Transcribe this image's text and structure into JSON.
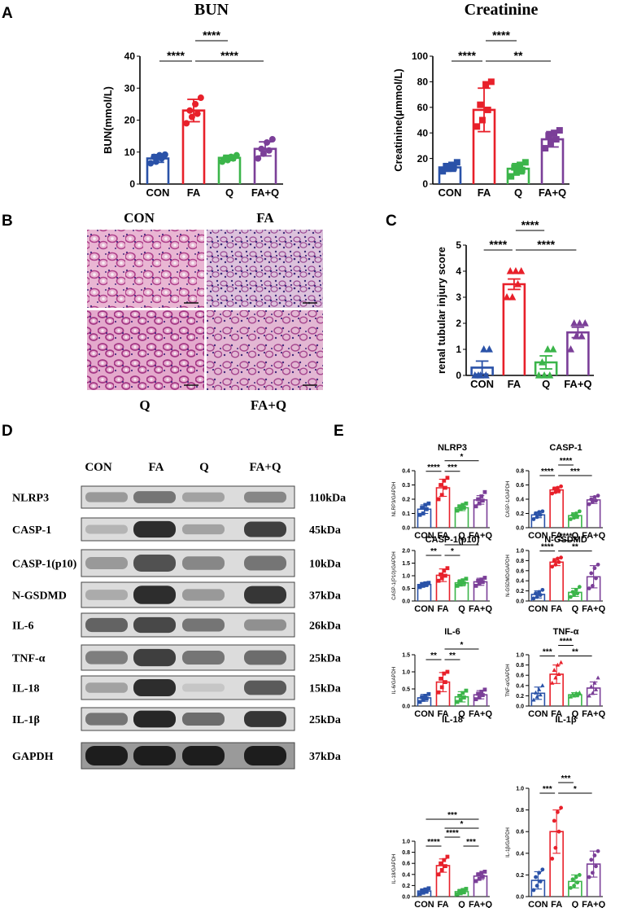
{
  "panels": {
    "A": "A",
    "B": "B",
    "C": "C",
    "D": "D",
    "E": "E"
  },
  "colors": {
    "CON": "#2a52a8",
    "FA": "#e8202a",
    "Q": "#3bb54a",
    "FA+Q": "#7b3f98"
  },
  "histology": {
    "labels": [
      "CON",
      "FA",
      "Q",
      "FA+Q"
    ]
  },
  "western_blot": {
    "lanes": [
      "CON",
      "FA",
      "Q",
      "FA+Q"
    ],
    "proteins": [
      {
        "name": "NLRP3",
        "size": "110kDa",
        "intensity": [
          0.35,
          0.55,
          0.3,
          0.45
        ]
      },
      {
        "name": "CASP-1",
        "size": "45kDa",
        "intensity": [
          0.2,
          0.95,
          0.3,
          0.85
        ]
      },
      {
        "name": "CASP-1(p10)",
        "size": "10kDa",
        "intensity": [
          0.35,
          0.75,
          0.45,
          0.55
        ]
      },
      {
        "name": "N-GSDMD",
        "size": "37kDa",
        "intensity": [
          0.25,
          0.95,
          0.35,
          0.9
        ]
      },
      {
        "name": "IL-6",
        "size": "26kDa",
        "intensity": [
          0.65,
          0.8,
          0.55,
          0.4
        ]
      },
      {
        "name": "TNF-α",
        "size": "25kDa",
        "intensity": [
          0.5,
          0.85,
          0.55,
          0.6
        ]
      },
      {
        "name": "IL-18",
        "size": "15kDa",
        "intensity": [
          0.3,
          0.95,
          0.1,
          0.7
        ]
      },
      {
        "name": "IL-1β",
        "size": "25kDa",
        "intensity": [
          0.55,
          0.98,
          0.6,
          0.9
        ]
      },
      {
        "name": "GAPDH",
        "size": "37kDa",
        "intensity": [
          1.0,
          1.0,
          1.0,
          1.0
        ]
      }
    ]
  },
  "chart_data": [
    {
      "id": "bun",
      "type": "bar",
      "title": "BUN",
      "ylabel": "BUN(mmol/L)",
      "categories": [
        "CON",
        "FA",
        "Q",
        "FA+Q"
      ],
      "values": [
        8,
        23,
        8.2,
        11
      ],
      "errors": [
        1.2,
        3.5,
        0.8,
        2.2
      ],
      "points": [
        [
          6.5,
          7,
          8,
          8.5,
          9,
          9.2
        ],
        [
          19,
          21,
          22,
          23,
          25,
          27
        ],
        [
          7,
          7.5,
          8,
          8.2,
          8.5,
          9
        ],
        [
          8,
          9.5,
          10.5,
          11,
          13,
          14
        ]
      ],
      "ylim": [
        0,
        40
      ],
      "yticks": [
        0,
        10,
        20,
        30,
        40
      ],
      "sig": [
        {
          "from": 0,
          "to": 1,
          "text": "****",
          "level": 0
        },
        {
          "from": 1,
          "to": 3,
          "text": "****",
          "level": 0
        },
        {
          "from": 1,
          "to": 2,
          "text": "****",
          "level": 1
        }
      ]
    },
    {
      "id": "creat",
      "type": "bar",
      "title": "Creatinine",
      "ylabel": "Creatinine(μmmol/L)",
      "categories": [
        "CON",
        "FA",
        "Q",
        "FA+Q"
      ],
      "values": [
        13,
        58,
        12,
        35
      ],
      "errors": [
        3,
        17,
        4,
        6
      ],
      "points": [
        [
          10,
          12,
          13,
          14,
          15,
          17
        ],
        [
          45,
          50,
          58,
          62,
          78,
          80
        ],
        [
          6,
          9,
          11,
          13,
          15,
          17
        ],
        [
          28,
          32,
          35,
          38,
          40,
          42
        ]
      ],
      "ylim": [
        0,
        100
      ],
      "yticks": [
        0,
        20,
        40,
        60,
        80,
        100
      ],
      "sig": [
        {
          "from": 0,
          "to": 1,
          "text": "****",
          "level": 0
        },
        {
          "from": 1,
          "to": 3,
          "text": "**",
          "level": 0
        },
        {
          "from": 1,
          "to": 2,
          "text": "****",
          "level": 1
        }
      ]
    },
    {
      "id": "injury",
      "type": "bar",
      "ylabel": "renal tubular injury score",
      "categories": [
        "CON",
        "FA",
        "Q",
        "FA+Q"
      ],
      "values": [
        0.3,
        3.5,
        0.5,
        1.65
      ],
      "errors": [
        0.25,
        0.2,
        0.25,
        0.2
      ],
      "points": [
        [
          0,
          0,
          0,
          0,
          1,
          1
        ],
        [
          3,
          3,
          3.5,
          4,
          4,
          4
        ],
        [
          0,
          0,
          0,
          0.5,
          1,
          1
        ],
        [
          1,
          1.5,
          1.5,
          2,
          2,
          2
        ]
      ],
      "ylim": [
        0,
        5
      ],
      "yticks": [
        0,
        1,
        2,
        3,
        4,
        5
      ],
      "sig": [
        {
          "from": 0,
          "to": 1,
          "text": "****",
          "level": 0
        },
        {
          "from": 1,
          "to": 3,
          "text": "****",
          "level": 0
        },
        {
          "from": 1,
          "to": 2,
          "text": "****",
          "level": 1
        }
      ]
    },
    {
      "id": "nlrp3",
      "type": "bar",
      "title": "NLRP3",
      "ylabel": "NLRP3/GAPDH",
      "categories": [
        "CON",
        "FA",
        "Q",
        "FA+Q"
      ],
      "values": [
        0.13,
        0.28,
        0.14,
        0.195
      ],
      "errors": [
        0.03,
        0.06,
        0.02,
        0.03
      ],
      "points": [
        [
          0.09,
          0.1,
          0.13,
          0.14,
          0.16,
          0.17
        ],
        [
          0.2,
          0.23,
          0.28,
          0.3,
          0.33,
          0.35
        ],
        [
          0.12,
          0.13,
          0.14,
          0.15,
          0.16,
          0.17
        ],
        [
          0.15,
          0.17,
          0.19,
          0.2,
          0.22,
          0.25
        ]
      ],
      "ylim": [
        0,
        0.4
      ],
      "yticks": [
        0,
        0.1,
        0.2,
        0.3,
        0.4
      ],
      "sig": [
        {
          "from": 0,
          "to": 1,
          "text": "****",
          "level": 0
        },
        {
          "from": 1,
          "to": 2,
          "text": "***",
          "level": 0
        },
        {
          "from": 1,
          "to": 3,
          "text": "*",
          "level": 1
        }
      ]
    },
    {
      "id": "casp1",
      "type": "bar",
      "title": "CASP-1",
      "ylabel": "CASP-1/GAPDH",
      "categories": [
        "CON",
        "FA",
        "Q",
        "FA+Q"
      ],
      "values": [
        0.18,
        0.53,
        0.17,
        0.39
      ],
      "errors": [
        0.04,
        0.04,
        0.04,
        0.05
      ],
      "points": [
        [
          0.12,
          0.15,
          0.18,
          0.2,
          0.22,
          0.23
        ],
        [
          0.48,
          0.5,
          0.52,
          0.55,
          0.56,
          0.58
        ],
        [
          0.12,
          0.14,
          0.16,
          0.18,
          0.2,
          0.23
        ],
        [
          0.33,
          0.36,
          0.38,
          0.4,
          0.43,
          0.45
        ]
      ],
      "ylim": [
        0,
        0.8
      ],
      "yticks": [
        0,
        0.2,
        0.4,
        0.6,
        0.8
      ],
      "sig": [
        {
          "from": 0,
          "to": 1,
          "text": "****",
          "level": 0
        },
        {
          "from": 1,
          "to": 3,
          "text": "***",
          "level": 0
        },
        {
          "from": 1,
          "to": 2,
          "text": "****",
          "level": 1
        }
      ]
    },
    {
      "id": "casp1p10",
      "type": "bar",
      "title": "CASP-1(p10)",
      "ylabel": "CASP-1(P10)/GAPDH",
      "categories": [
        "CON",
        "FA",
        "Q",
        "FA+Q"
      ],
      "values": [
        0.65,
        1.02,
        0.72,
        0.76
      ],
      "errors": [
        0.08,
        0.25,
        0.12,
        0.14
      ],
      "points": [
        [
          0.55,
          0.6,
          0.65,
          0.67,
          0.7,
          0.72
        ],
        [
          0.8,
          0.9,
          1.0,
          1.05,
          1.2,
          1.3
        ],
        [
          0.6,
          0.65,
          0.7,
          0.75,
          0.82,
          0.88
        ],
        [
          0.6,
          0.68,
          0.75,
          0.8,
          0.85,
          0.92
        ]
      ],
      "ylim": [
        0,
        2.0
      ],
      "yticks": [
        0,
        0.5,
        1.0,
        1.5,
        2.0
      ],
      "sig": [
        {
          "from": 0,
          "to": 1,
          "text": "**",
          "level": 0
        },
        {
          "from": 1,
          "to": 2,
          "text": "*",
          "level": 0
        },
        {
          "from": 1,
          "to": 3,
          "text": "*",
          "level": 1
        }
      ]
    },
    {
      "id": "ngsdmd",
      "type": "bar",
      "title": "N-GSDMD",
      "ylabel": "N-GSDMD/GAPDH",
      "categories": [
        "CON",
        "FA",
        "Q",
        "FA+Q"
      ],
      "values": [
        0.13,
        0.77,
        0.17,
        0.48
      ],
      "errors": [
        0.07,
        0.07,
        0.08,
        0.22
      ],
      "points": [
        [
          0.05,
          0.08,
          0.12,
          0.15,
          0.18,
          0.22
        ],
        [
          0.68,
          0.72,
          0.77,
          0.8,
          0.84,
          0.86
        ],
        [
          0.08,
          0.12,
          0.15,
          0.18,
          0.22,
          0.28
        ],
        [
          0.25,
          0.3,
          0.45,
          0.55,
          0.65,
          0.72
        ]
      ],
      "ylim": [
        0,
        1.0
      ],
      "yticks": [
        0,
        0.2,
        0.4,
        0.6,
        0.8,
        1.0
      ],
      "sig": [
        {
          "from": 0,
          "to": 1,
          "text": "****",
          "level": 0
        },
        {
          "from": 1,
          "to": 3,
          "text": "**",
          "level": 0
        },
        {
          "from": 1,
          "to": 2,
          "text": "****",
          "level": 1
        }
      ]
    },
    {
      "id": "il6",
      "type": "bar",
      "title": "IL-6",
      "ylabel": "IL-6/GAPDH",
      "categories": [
        "CON",
        "FA",
        "Q",
        "FA+Q"
      ],
      "values": [
        0.24,
        0.7,
        0.27,
        0.33
      ],
      "errors": [
        0.1,
        0.28,
        0.15,
        0.12
      ],
      "points": [
        [
          0.12,
          0.18,
          0.22,
          0.26,
          0.3,
          0.35
        ],
        [
          0.4,
          0.55,
          0.7,
          0.8,
          0.95,
          1.0
        ],
        [
          0.12,
          0.18,
          0.25,
          0.3,
          0.38,
          0.45
        ],
        [
          0.2,
          0.25,
          0.32,
          0.36,
          0.42,
          0.48
        ]
      ],
      "ylim": [
        0,
        1.5
      ],
      "yticks": [
        0,
        0.5,
        1.0,
        1.5
      ],
      "sig": [
        {
          "from": 0,
          "to": 1,
          "text": "**",
          "level": 0
        },
        {
          "from": 1,
          "to": 2,
          "text": "**",
          "level": 0
        },
        {
          "from": 1,
          "to": 3,
          "text": "*",
          "level": 1
        }
      ]
    },
    {
      "id": "tnfa",
      "type": "bar",
      "title": "TNF-α",
      "ylabel": "TNF-α/GAPDH",
      "categories": [
        "CON",
        "FA",
        "Q",
        "FA+Q"
      ],
      "values": [
        0.25,
        0.62,
        0.22,
        0.35
      ],
      "errors": [
        0.12,
        0.18,
        0.04,
        0.12
      ],
      "points": [
        [
          0.12,
          0.18,
          0.22,
          0.26,
          0.32,
          0.4
        ],
        [
          0.45,
          0.55,
          0.62,
          0.7,
          0.8,
          0.85
        ],
        [
          0.18,
          0.2,
          0.22,
          0.23,
          0.25,
          0.26
        ],
        [
          0.2,
          0.25,
          0.32,
          0.38,
          0.45,
          0.55
        ]
      ],
      "ylim": [
        0,
        1.0
      ],
      "yticks": [
        0,
        0.2,
        0.4,
        0.6,
        0.8,
        1.0
      ],
      "sig": [
        {
          "from": 0,
          "to": 1,
          "text": "***",
          "level": 0
        },
        {
          "from": 1,
          "to": 3,
          "text": "**",
          "level": 0
        },
        {
          "from": 1,
          "to": 2,
          "text": "****",
          "level": 1
        }
      ]
    },
    {
      "id": "il18",
      "type": "bar",
      "title": "IL-18",
      "ylabel": "IL-18/GAPDH",
      "categories": [
        "CON",
        "FA",
        "Q",
        "FA+Q"
      ],
      "values": [
        0.1,
        0.56,
        0.09,
        0.37
      ],
      "errors": [
        0.04,
        0.12,
        0.04,
        0.06
      ],
      "points": [
        [
          0.05,
          0.07,
          0.09,
          0.11,
          0.13,
          0.15
        ],
        [
          0.4,
          0.48,
          0.55,
          0.6,
          0.66,
          0.72
        ],
        [
          0.04,
          0.06,
          0.08,
          0.1,
          0.12,
          0.14
        ],
        [
          0.28,
          0.32,
          0.36,
          0.4,
          0.43,
          0.45
        ]
      ],
      "ylim": [
        0,
        1.0
      ],
      "yticks": [
        0,
        0.2,
        0.4,
        0.6,
        0.8,
        1.0
      ],
      "sig": [
        {
          "from": 0,
          "to": 1,
          "text": "****",
          "level": 0
        },
        {
          "from": 2,
          "to": 3,
          "text": "***",
          "level": 0
        },
        {
          "from": 1,
          "to": 2,
          "text": "****",
          "level": 1
        },
        {
          "from": 1,
          "to": 3,
          "text": "*",
          "level": 2
        },
        {
          "from": 0,
          "to": 3,
          "text": "***",
          "level": 3
        }
      ]
    },
    {
      "id": "il1b",
      "type": "bar",
      "title": "IL-1β",
      "ylabel": "IL-1β/GAPDH",
      "categories": [
        "CON",
        "FA",
        "Q",
        "FA+Q"
      ],
      "values": [
        0.15,
        0.6,
        0.14,
        0.3
      ],
      "errors": [
        0.08,
        0.2,
        0.06,
        0.12
      ],
      "points": [
        [
          0.06,
          0.1,
          0.14,
          0.18,
          0.22,
          0.25
        ],
        [
          0.35,
          0.45,
          0.6,
          0.7,
          0.78,
          0.82
        ],
        [
          0.08,
          0.1,
          0.13,
          0.16,
          0.18,
          0.2
        ],
        [
          0.18,
          0.22,
          0.28,
          0.34,
          0.38,
          0.42
        ]
      ],
      "ylim": [
        0,
        1.0
      ],
      "yticks": [
        0,
        0.2,
        0.4,
        0.6,
        0.8,
        1.0
      ],
      "sig": [
        {
          "from": 0,
          "to": 1,
          "text": "***",
          "level": 0
        },
        {
          "from": 1,
          "to": 3,
          "text": "*",
          "level": 0
        },
        {
          "from": 1,
          "to": 2,
          "text": "***",
          "level": 1
        }
      ]
    }
  ]
}
